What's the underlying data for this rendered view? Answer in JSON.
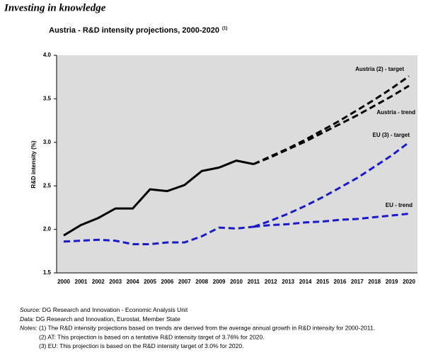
{
  "header": "Investing in knowledge",
  "chart_data": {
    "type": "line",
    "title": "Austria  - R&D intensity projections, 2000-2020",
    "title_note": "(1)",
    "y_label": "R&D intensity (%)",
    "categories": [
      "2000",
      "2001",
      "2002",
      "2003",
      "2004",
      "2005",
      "2006",
      "2007",
      "2008",
      "2009",
      "2010",
      "2011",
      "2012",
      "2013",
      "2014",
      "2015",
      "2016",
      "2017",
      "2018",
      "2019",
      "2020"
    ],
    "ylim": [
      1.5,
      4.0
    ],
    "yticks": [
      {
        "value": 1.5,
        "label": "1.5"
      },
      {
        "value": 2,
        "label": "2.0"
      },
      {
        "value": 2.5,
        "label": "2.5"
      },
      {
        "value": 3,
        "label": "3.0"
      },
      {
        "value": 3.5,
        "label": "3.5"
      },
      {
        "value": 4,
        "label": "4.0"
      }
    ],
    "background": "#dcdcdc",
    "series": [
      {
        "color": "#000000",
        "dashed": false,
        "values": [
          1.93,
          2.05,
          2.13,
          2.24,
          2.24,
          2.46,
          2.44,
          2.51,
          2.67,
          2.71,
          2.79,
          2.75,
          null,
          null,
          null,
          null,
          null,
          null,
          null,
          null,
          null
        ]
      },
      {
        "name": "Austria (2) - target",
        "color": "#000000",
        "dashed": true,
        "values": [
          null,
          null,
          null,
          null,
          null,
          null,
          null,
          null,
          null,
          null,
          null,
          2.75,
          2.84,
          2.93,
          3.03,
          3.14,
          3.25,
          3.37,
          3.49,
          3.62,
          3.76
        ]
      },
      {
        "name": "Austria - trend",
        "color": "#000000",
        "dashed": true,
        "values": [
          null,
          null,
          null,
          null,
          null,
          null,
          null,
          null,
          null,
          null,
          null,
          2.75,
          2.83,
          2.92,
          3.01,
          3.11,
          3.21,
          3.31,
          3.42,
          3.53,
          3.65
        ]
      },
      {
        "color": "#1a1ac8",
        "dashed": true,
        "values": [
          1.86,
          1.87,
          1.88,
          1.87,
          1.83,
          1.83,
          1.85,
          1.85,
          1.92,
          2.02,
          2.01,
          2.03,
          null,
          null,
          null,
          null,
          null,
          null,
          null,
          null,
          null
        ]
      },
      {
        "name": "EU (3) - target",
        "color": "#1a1ac8",
        "dashed": true,
        "values": [
          null,
          null,
          null,
          null,
          null,
          null,
          null,
          null,
          null,
          null,
          null,
          2.03,
          2.1,
          2.18,
          2.27,
          2.37,
          2.48,
          2.59,
          2.72,
          2.85,
          3.0
        ]
      },
      {
        "name": "EU - trend",
        "color": "#1a1ac8",
        "dashed": true,
        "values": [
          null,
          null,
          null,
          null,
          null,
          null,
          null,
          null,
          null,
          null,
          null,
          2.03,
          2.05,
          2.06,
          2.08,
          2.09,
          2.11,
          2.12,
          2.14,
          2.16,
          2.18
        ]
      }
    ]
  },
  "footer": [
    {
      "label": "Source:",
      "text": "DG Research and Innovation - Economic Analysis Unit"
    },
    {
      "label": "Data:",
      "text": "DG Research and Innovation, Eurostat, Member State"
    },
    {
      "label": "Notes:",
      "text": "(1) The R&D intensity projections based on trends are derived from the average annual growth in R&D intensity for 2000-2011."
    },
    {
      "text": "(2) AT: This projection is based on a tentative R&D intensity target of 3.76% for 2020."
    },
    {
      "text": "(3) EU: This projection is based on the R&D intensity target of 3.0% for 2020."
    }
  ]
}
